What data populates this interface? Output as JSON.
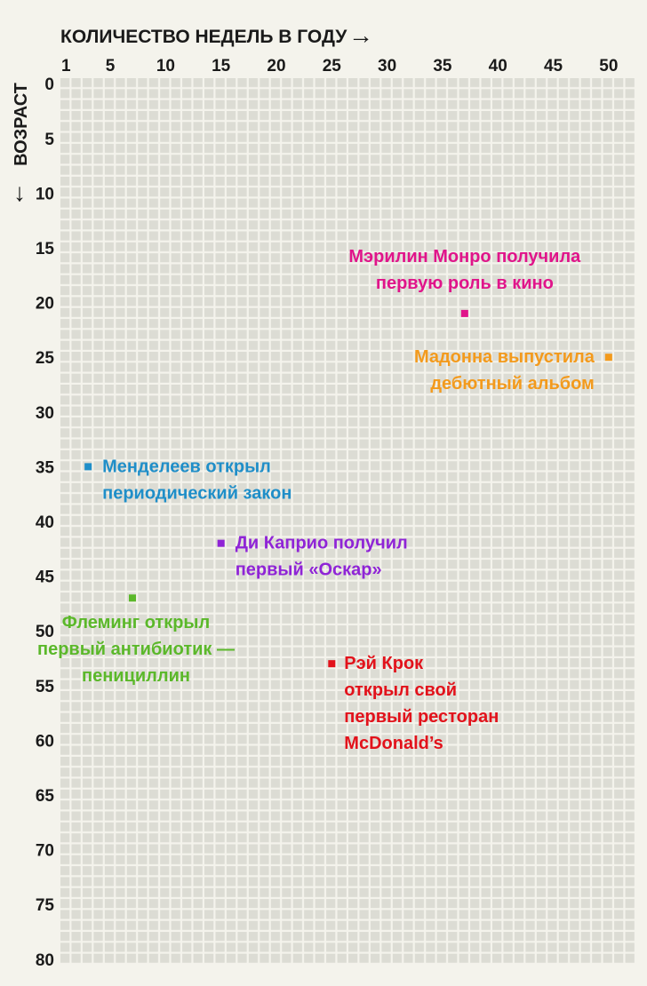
{
  "chart_data": {
    "type": "scatter",
    "title": "",
    "xlabel": "КОЛИЧЕСТВО НЕДЕЛЬ В ГОДУ",
    "ylabel": "ВОЗРАСТ",
    "x_arrow": "→",
    "y_arrow": "↓",
    "xlim": [
      1,
      52
    ],
    "ylim": [
      0,
      80
    ],
    "x_ticks": [
      "1",
      "5",
      "10",
      "15",
      "20",
      "25",
      "30",
      "35",
      "40",
      "45",
      "50"
    ],
    "y_ticks": [
      "0",
      "5",
      "10",
      "15",
      "20",
      "25",
      "30",
      "35",
      "40",
      "45",
      "50",
      "55",
      "60",
      "65",
      "70",
      "75",
      "80"
    ],
    "grid": true,
    "points": [
      {
        "week": 37,
        "age": 21,
        "color": "#e0148a",
        "lines": [
          "Мэрилин Монро получила",
          "первую роль в кино"
        ]
      },
      {
        "week": 50,
        "age": 25,
        "color": "#f39a1c",
        "lines": [
          "Мадонна выпустила",
          "дебютный альбом"
        ]
      },
      {
        "week": 3,
        "age": 35,
        "color": "#1f8ec8",
        "lines": [
          "Менделеев открыл",
          "периодический закон"
        ]
      },
      {
        "week": 15,
        "age": 42,
        "color": "#8f24d6",
        "lines": [
          "Ди Каприо получил",
          "первый «Оскар»"
        ]
      },
      {
        "week": 7,
        "age": 47,
        "color": "#5bb82a",
        "lines": [
          "Флеминг открыл",
          "первый антибиотик —",
          "пенициллин"
        ]
      },
      {
        "week": 25,
        "age": 53,
        "color": "#e2121b",
        "lines": [
          "Рэй Крок",
          "открыл свой",
          "первый ресторан",
          "McDonald’s"
        ]
      }
    ]
  }
}
